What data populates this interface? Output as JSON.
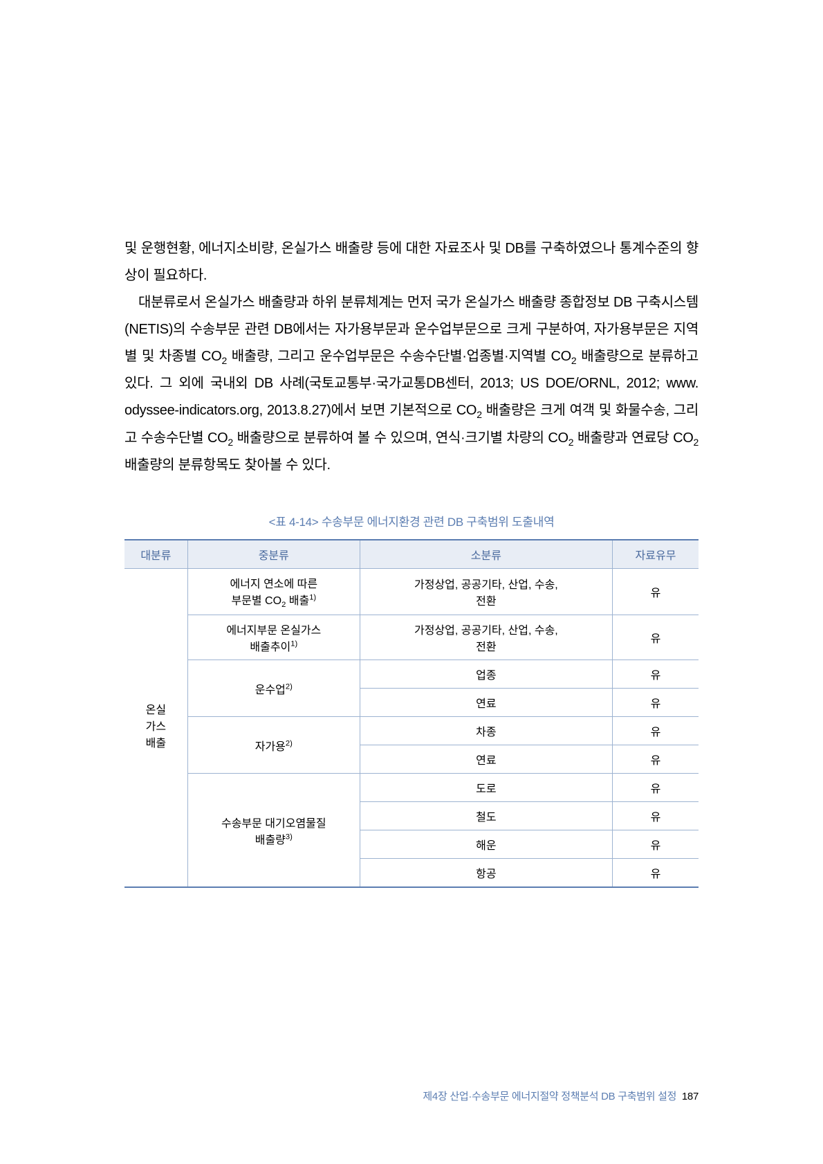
{
  "paragraphs": {
    "p1": "및 운행현황, 에너지소비량, 온실가스 배출량 등에 대한 자료조사 및 DB를 구축하였으나 통계수준의 향상이 필요하다.",
    "p2a": "대분류로서 온실가스 배출량과 하위 분류체계는 먼저 국가 온실가스 배출량 종합정보 DB 구축시스템(NETIS)의 수송부문 관련 DB에서는 자가용부문과 운수업부문으로 크게 구분하여, 자가용부문은 지역별 및 차종별 CO",
    "p2b": " 배출량, 그리고 운수업부문은 수송수단별·업종별·지역별 CO",
    "p2c": " 배출량으로 분류하고 있다. 그 외에 국내외 DB 사례(국토교통부·국가교통DB센터, 2013; US DOE/ORNL, 2012; www. odyssee-indicators.org, 2013.8.27)에서 보면 기본적으로 CO",
    "p2d": " 배출량은 크게 여객 및 화물수송, 그리고 수송수단별 CO",
    "p2e": " 배출량으로 분류하여 볼 수 있으며, 연식·크기별 차량의 CO",
    "p2f": " 배출량과 연료당 CO",
    "p2g": " 배출량의 분류항목도 찾아볼 수 있다."
  },
  "table": {
    "caption": "<표 4-14> 수송부문 에너지환경 관련 DB 구축범위 도출내역",
    "headers": {
      "h1": "대분류",
      "h2": "중분류",
      "h3": "소분류",
      "h4": "자료유무"
    },
    "col1_label_line1": "온실",
    "col1_label_line2": "가스",
    "col1_label_line3": "배출",
    "mid1a": "에너지 연소에 따른",
    "mid1b": "부문별 CO",
    "mid1c": " 배출",
    "mid2a": "에너지부문 온실가스",
    "mid2b": "배출추이",
    "mid3": "운수업",
    "mid4": "자가용",
    "mid5a": "수송부문 대기오염물질",
    "mid5b": "배출량",
    "sub1": "가정상업, 공공기타, 산업, 수송,",
    "sub1b": "전환",
    "sub2": "가정상업, 공공기타, 산업, 수송,",
    "sub2b": "전환",
    "sub3": "업종",
    "sub4": "연료",
    "sub5": "차종",
    "sub6": "연료",
    "sub7": "도로",
    "sub8": "철도",
    "sub9": "해운",
    "sub10": "항공",
    "yes": "유",
    "sup1": "1)",
    "sup2": "2)",
    "sup3": "3)",
    "sub_2": "2"
  },
  "footer": {
    "chapter": "제4장 산업·수송부문 에너지절약 정책분석 DB 구축범위 설정",
    "page": "187"
  }
}
